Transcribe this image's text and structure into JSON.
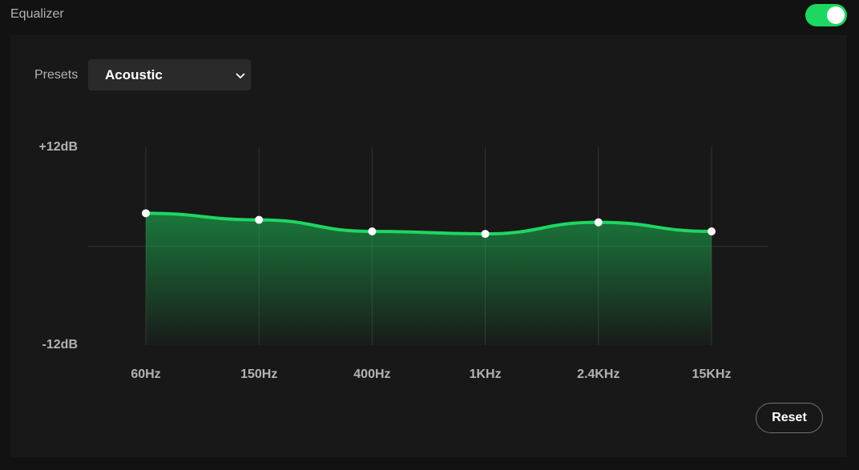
{
  "header": {
    "title": "Equalizer"
  },
  "presets": {
    "label": "Presets",
    "selected": "Acoustic"
  },
  "chart_data": {
    "type": "area",
    "categories": [
      "60Hz",
      "150Hz",
      "400Hz",
      "1KHz",
      "2.4KHz",
      "15KHz"
    ],
    "values": [
      4,
      3.2,
      1.8,
      1.5,
      2.9,
      1.8
    ],
    "color": "#1ed760",
    "ylim": [
      -12,
      12
    ],
    "yticks": [
      {
        "value": 12,
        "label": "+12dB"
      },
      {
        "value": -12,
        "label": "-12dB"
      }
    ]
  },
  "reset": {
    "label": "Reset"
  }
}
